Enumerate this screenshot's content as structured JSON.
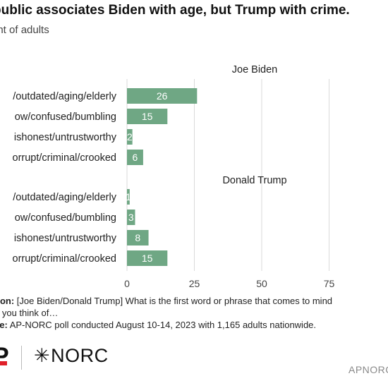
{
  "header": {
    "title": "public associates Biden with age, but Trump with crime.",
    "subtitle": "ent of adults"
  },
  "notes": {
    "question_prefix": "tion:",
    "question_text": " [Joe Biden/Donald Trump] What is the first word or phrase that comes to mind",
    "question_line2": "n you think of…",
    "source_prefix": "ce:",
    "source_text": " AP-NORC poll conducted August 10-14, 2023 with 1,165 adults nationwide."
  },
  "footer": {
    "logo_left": "P",
    "logo_norc": "NORC",
    "logo_norc_star": "✳",
    "credit": "APNORC"
  },
  "style": {
    "bar_color": "#6fa784",
    "grid_color": "#d9d9d9"
  },
  "chart_data": {
    "type": "bar",
    "orientation": "horizontal",
    "categories": [
      "/outdated/aging/elderly",
      "ow/confused/bumbling",
      "ishonest/untrustworthy",
      "orrupt/criminal/crooked"
    ],
    "panels": [
      {
        "title": "Joe Biden",
        "values": [
          26,
          15,
          2,
          6
        ]
      },
      {
        "title": "Donald Trump",
        "values": [
          1,
          3,
          8,
          15
        ]
      }
    ],
    "xticks": [
      0,
      25,
      50,
      75
    ],
    "xlim": [
      0,
      100
    ],
    "grid": true
  }
}
